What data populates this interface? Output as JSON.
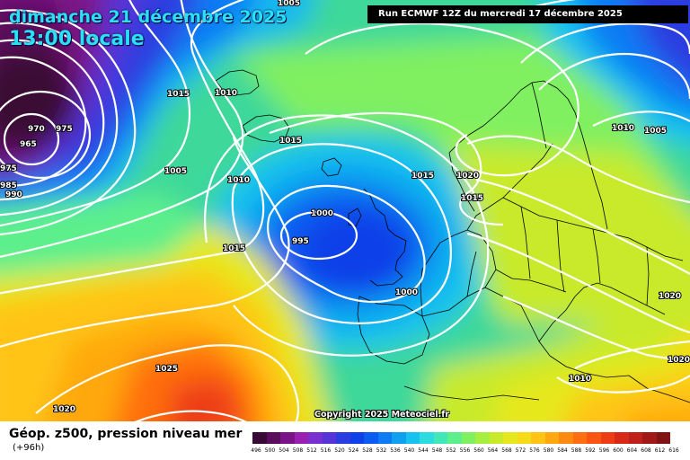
{
  "header": {
    "date_line": "dimanche 21 décembre 2025",
    "time_line": "13:00 locale",
    "run_info": "Run ECMWF 12Z du mercredi 17 décembre 2025"
  },
  "copyright": "Copyright 2025 Meteociel.fr",
  "footer": {
    "title": "Géop. z500, pression niveau mer",
    "subtitle": "(+96h)"
  },
  "isobar_labels": [
    "1005",
    "1015",
    "1010",
    "970",
    "975",
    "965",
    "985",
    "990",
    "975",
    "1005",
    "1010",
    "1015",
    "1000",
    "995",
    "1000",
    "1015",
    "1025",
    "1020",
    "1015",
    "1020",
    "1015",
    "1010",
    "1005",
    "1020",
    "1020",
    "1010"
  ],
  "scale": {
    "labels": [
      "496",
      "500",
      "504",
      "508",
      "512",
      "516",
      "520",
      "524",
      "528",
      "532",
      "536",
      "540",
      "544",
      "548",
      "552",
      "556",
      "560",
      "564",
      "568",
      "572",
      "576",
      "580",
      "584",
      "588",
      "592",
      "596",
      "600",
      "604",
      "608",
      "612",
      "616"
    ],
    "colors": [
      "#3a0a36",
      "#5a0d5a",
      "#7a1488",
      "#9a20b2",
      "#7a2fd0",
      "#5535d8",
      "#2b3ce0",
      "#1040e8",
      "#0b5cf0",
      "#0d7cf4",
      "#10a0f0",
      "#18c2ee",
      "#2adce0",
      "#40e8b8",
      "#5cef8c",
      "#80f060",
      "#a6ee40",
      "#c8ea2a",
      "#e6e81e",
      "#f6dc18",
      "#ffc414",
      "#ffa810",
      "#ff8a10",
      "#ff6e10",
      "#f85412",
      "#ee3c14",
      "#d82818",
      "#c0201a",
      "#a01818",
      "#801414"
    ]
  },
  "colors": {
    "purple_deep": "#3a0a36",
    "blue_low": "#1a3cd8",
    "green_mid": "#60ee60",
    "yellow": "#f4e418",
    "orange_high": "#ff8a10",
    "isobar": "#ffffff",
    "border": "#000000"
  }
}
